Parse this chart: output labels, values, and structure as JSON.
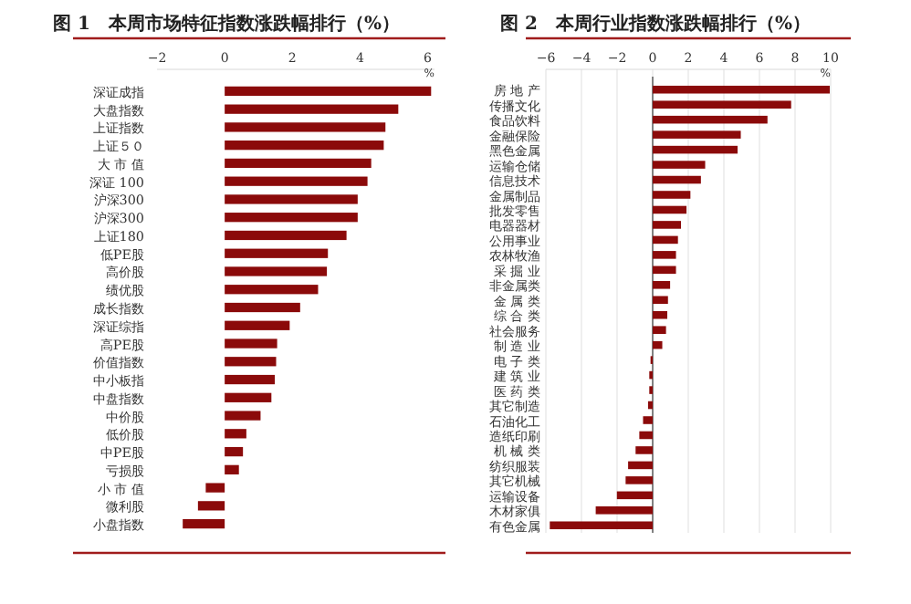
{
  "chart_data": [
    {
      "type": "bar",
      "orientation": "horizontal",
      "title": "图 1　本周市场特征指数涨跌幅排行（%）",
      "xlabel": "%",
      "color": "#8b0a0a",
      "xlim": [
        -2,
        6.2
      ],
      "xticks": [
        -2,
        0,
        2,
        4,
        6
      ],
      "grid": false,
      "categories": [
        "深证成指",
        "大盘指数",
        "上证指数",
        "上证５０",
        "大 市 值",
        "深证 100",
        "沪深300",
        "沪深300",
        "上证180",
        "低PE股",
        "高价股",
        "绩优股",
        "成长指数",
        "深证综指",
        "高PE股",
        "价值指数",
        "中小板指",
        "中盘指数",
        "中价股",
        "低价股",
        "中PE股",
        "亏损股",
        "小 市 值",
        "微利股",
        "小盘指数"
      ],
      "values": [
        6.1,
        5.13,
        4.75,
        4.7,
        4.33,
        4.22,
        3.93,
        3.93,
        3.6,
        3.05,
        3.02,
        2.76,
        2.23,
        1.92,
        1.55,
        1.52,
        1.48,
        1.38,
        1.06,
        0.64,
        0.54,
        0.42,
        -0.56,
        -0.79,
        -1.24
      ]
    },
    {
      "type": "bar",
      "orientation": "horizontal",
      "title": "图 2　本周行业指数涨跌幅排行（%）",
      "xlabel": "%",
      "color": "#8b0a0a",
      "xlim": [
        -6,
        10
      ],
      "xticks": [
        -6,
        -4,
        -2,
        0,
        2,
        4,
        6,
        8,
        10
      ],
      "grid": "x",
      "categories": [
        "房 地 产",
        "传播文化",
        "食品饮料",
        "金融保险",
        "黑色金属",
        "运输仓储",
        "信息技术",
        "金属制品",
        "批发零售",
        "电器器材",
        "公用事业",
        "农林牧渔",
        "采 掘 业",
        "非金属类",
        "金 属 类",
        "综 合 类",
        "社会服务",
        "制 造 业",
        "电 子 类",
        "建 筑 业",
        "医 药 类",
        "其它制造",
        "石油化工",
        "造纸印刷",
        "机 械 类",
        "纺织服装",
        "其它机械",
        "运输设备",
        "木材家俱",
        "有色金属"
      ],
      "values": [
        9.95,
        7.78,
        6.45,
        4.95,
        4.77,
        2.95,
        2.71,
        2.12,
        1.9,
        1.59,
        1.42,
        1.31,
        1.31,
        0.98,
        0.86,
        0.82,
        0.75,
        0.54,
        -0.12,
        -0.19,
        -0.19,
        -0.26,
        -0.54,
        -0.75,
        -0.96,
        -1.38,
        -1.52,
        -2.01,
        -3.2,
        -5.78
      ]
    }
  ]
}
